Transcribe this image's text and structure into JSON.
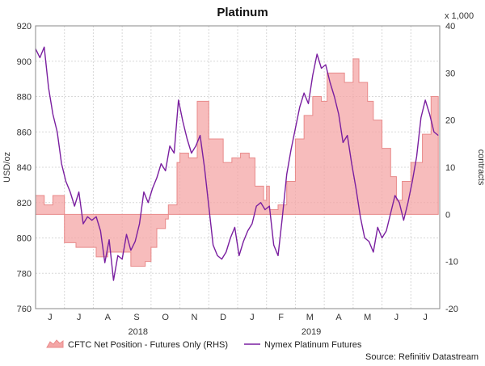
{
  "chart_data": {
    "type": "line",
    "title": "Platinum",
    "ylabel_left": "USD/oz",
    "ylabel_right": "contracts",
    "right_axis_multiplier": "x 1,000",
    "ylim_left": [
      760,
      920
    ],
    "ylim_right": [
      -20,
      40
    ],
    "yticks_left": [
      "760",
      "780",
      "800",
      "820",
      "840",
      "860",
      "880",
      "900",
      "920"
    ],
    "yticks_right": [
      "-20",
      "-10",
      "0",
      "10",
      "20",
      "30",
      "40"
    ],
    "grid": true,
    "legend_position": "bottom",
    "source": "Source: Refinitiv Datastream",
    "month_labels": [
      "J",
      "J",
      "A",
      "S",
      "O",
      "N",
      "D",
      "J",
      "F",
      "M",
      "A",
      "M",
      "J",
      "J"
    ],
    "year_labels": [
      {
        "label": "2018",
        "month_index": 4
      },
      {
        "label": "2019",
        "month_index": 10
      }
    ],
    "series": [
      {
        "name": "CFTC Net Position - Futures Only (RHS)",
        "kind": "area",
        "axis": "right",
        "color": "#f4a6a6",
        "edge_color": "#e88a8a",
        "x": [
          0,
          0.3,
          0.6,
          1.0,
          1.4,
          2.0,
          2.1,
          2.5,
          2.9,
          3.3,
          3.8,
          4.0,
          4.2,
          4.5,
          4.6,
          4.9,
          5.0,
          5.3,
          5.6,
          6.0,
          6.5,
          6.8,
          7.1,
          7.4,
          7.6,
          7.9,
          8.0,
          8.1,
          8.4,
          8.7,
          9.0,
          9.3,
          9.6,
          9.9,
          10.1,
          10.4,
          10.7,
          11.0,
          11.2,
          11.5,
          11.7,
          12.0,
          12.3,
          12.5,
          12.7,
          13.0,
          13.4,
          13.7,
          13.95
        ],
        "values": [
          4,
          2,
          4,
          -6,
          -7,
          -7,
          -9,
          -8,
          -8,
          -11,
          -10,
          -7,
          -3,
          -1,
          2,
          11,
          13,
          12,
          24,
          16,
          11,
          12,
          13,
          12,
          6,
          3,
          6,
          1,
          2,
          7,
          16,
          21,
          25,
          24,
          30,
          30,
          28,
          33,
          28,
          24,
          20,
          14,
          8,
          3,
          7,
          11,
          17,
          25,
          20
        ]
      },
      {
        "name": "Nymex Platinum Futures",
        "kind": "line",
        "axis": "left",
        "color": "#7a1fa0",
        "x": [
          0,
          0.15,
          0.3,
          0.45,
          0.6,
          0.75,
          0.9,
          1.05,
          1.2,
          1.35,
          1.5,
          1.65,
          1.8,
          1.95,
          2.1,
          2.25,
          2.4,
          2.55,
          2.7,
          2.85,
          3.0,
          3.15,
          3.3,
          3.45,
          3.6,
          3.75,
          3.9,
          4.05,
          4.2,
          4.35,
          4.5,
          4.65,
          4.8,
          4.95,
          5.1,
          5.25,
          5.4,
          5.55,
          5.7,
          5.85,
          6.0,
          6.15,
          6.3,
          6.45,
          6.6,
          6.75,
          6.9,
          7.05,
          7.2,
          7.35,
          7.5,
          7.65,
          7.8,
          7.95,
          8.1,
          8.25,
          8.4,
          8.55,
          8.7,
          8.85,
          9.0,
          9.15,
          9.3,
          9.45,
          9.6,
          9.75,
          9.9,
          10.05,
          10.2,
          10.35,
          10.5,
          10.65,
          10.8,
          10.95,
          11.1,
          11.25,
          11.4,
          11.55,
          11.7,
          11.85,
          12.0,
          12.15,
          12.3,
          12.45,
          12.6,
          12.75,
          12.9,
          13.05,
          13.2,
          13.35,
          13.5,
          13.65,
          13.8,
          13.95
        ],
        "values": [
          907,
          902,
          908,
          885,
          870,
          860,
          842,
          832,
          826,
          818,
          826,
          808,
          812,
          810,
          812,
          804,
          786,
          799,
          776,
          790,
          788,
          802,
          793,
          798,
          808,
          826,
          820,
          828,
          834,
          842,
          838,
          852,
          848,
          878,
          866,
          856,
          848,
          852,
          858,
          840,
          818,
          796,
          790,
          788,
          792,
          800,
          806,
          790,
          798,
          804,
          808,
          818,
          820,
          816,
          818,
          796,
          790,
          812,
          836,
          850,
          862,
          874,
          882,
          876,
          892,
          904,
          896,
          898,
          888,
          880,
          870,
          854,
          858,
          842,
          828,
          812,
          800,
          798,
          792,
          806,
          800,
          804,
          814,
          824,
          820,
          810,
          820,
          832,
          846,
          868,
          878,
          870,
          860,
          858
        ]
      }
    ]
  }
}
